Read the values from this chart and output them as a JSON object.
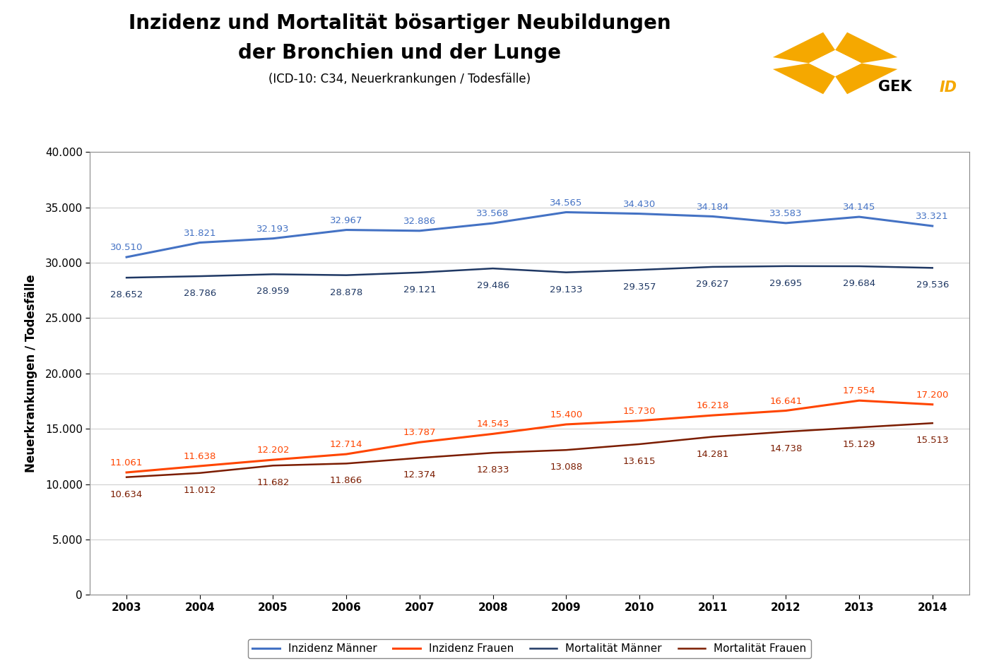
{
  "title_line1": "Inzidenz und Mortalität bösartiger Neubildungen",
  "title_line2": "der Bronchien und der Lunge",
  "subtitle": "(ICD-10: C34, Neuerkrankungen / Todesfälle)",
  "ylabel": "Neuerkrankungen / Todesfälle",
  "years": [
    2003,
    2004,
    2005,
    2006,
    2007,
    2008,
    2009,
    2010,
    2011,
    2012,
    2013,
    2014
  ],
  "inzidenz_maenner": [
    30510,
    31821,
    32193,
    32967,
    32886,
    33568,
    34565,
    34430,
    34184,
    33583,
    34145,
    33321
  ],
  "inzidenz_frauen": [
    11061,
    11638,
    12202,
    12714,
    13787,
    14543,
    15400,
    15730,
    16218,
    16641,
    17554,
    17200
  ],
  "mortalitaet_maenner": [
    28652,
    28786,
    28959,
    28878,
    29121,
    29486,
    29133,
    29357,
    29627,
    29695,
    29684,
    29536
  ],
  "mortalitaet_frauen": [
    10634,
    11012,
    11682,
    11866,
    12374,
    12833,
    13088,
    13615,
    14281,
    14738,
    15129,
    15513
  ],
  "color_inzidenz_maenner": "#4472C4",
  "color_inzidenz_frauen": "#FF4500",
  "color_mortalitaet_maenner": "#1F3864",
  "color_mortalitaet_frauen": "#7B1C00",
  "logo_color": "#F5A800",
  "ylim": [
    0,
    40000
  ],
  "yticks": [
    0,
    5000,
    10000,
    15000,
    20000,
    25000,
    30000,
    35000,
    40000
  ],
  "background_color": "#FFFFFF",
  "plot_bg_color": "#FFFFFF",
  "grid_color": "#C0C0C0",
  "legend_inzidenz_maenner": "Inzidenz Männer",
  "legend_inzidenz_frauen": "Inzidenz Frauen",
  "legend_mortalitaet_maenner": "Mortalität Männer",
  "legend_mortalitaet_frauen": "Mortalität Frauen",
  "title_fontsize": 20,
  "subtitle_fontsize": 12,
  "axis_label_fontsize": 12,
  "tick_label_fontsize": 11,
  "data_label_fontsize": 9.5,
  "legend_fontsize": 11
}
